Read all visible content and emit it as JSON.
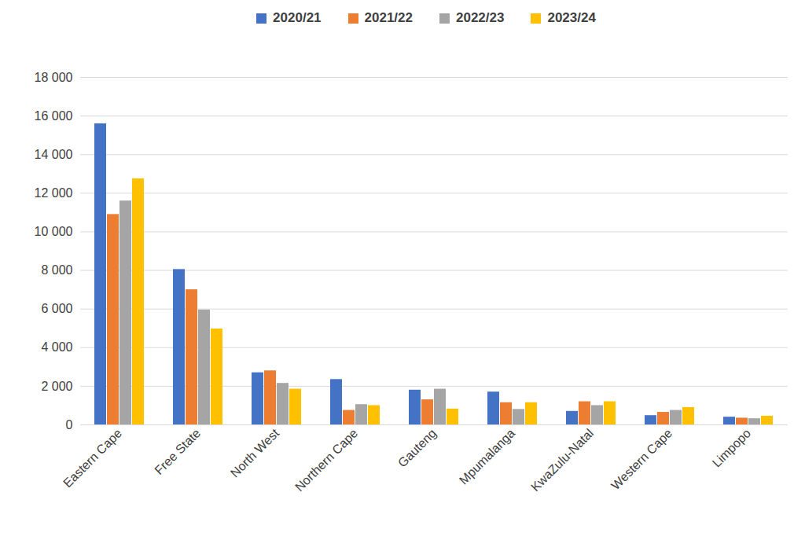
{
  "chart_data": {
    "type": "bar",
    "categories": [
      "Eastern Cape",
      "Free State",
      "North West",
      "Northern Cape",
      "Gauteng",
      "Mpumalanga",
      "KwaZulu-Natal",
      "Western Cape",
      "Limpopo"
    ],
    "series": [
      {
        "name": "2020/21",
        "color": "#4472c4",
        "values": [
          15600,
          8050,
          2700,
          2350,
          1800,
          1700,
          700,
          480,
          400
        ]
      },
      {
        "name": "2021/22",
        "color": "#ed7d31",
        "values": [
          10900,
          7000,
          2800,
          750,
          1300,
          1150,
          1200,
          650,
          350
        ]
      },
      {
        "name": "2022/23",
        "color": "#a5a5a5",
        "values": [
          11600,
          5950,
          2150,
          1050,
          1850,
          800,
          1000,
          750,
          320
        ]
      },
      {
        "name": "2023/24",
        "color": "#ffc000",
        "values": [
          12750,
          4970,
          1850,
          1000,
          820,
          1150,
          1200,
          900,
          450
        ]
      }
    ],
    "ylim": [
      0,
      18000
    ],
    "yticks": [
      0,
      {
        "value": 2000,
        "label": "2 000"
      },
      {
        "value": 4000,
        "label": "4 000"
      },
      {
        "value": 6000,
        "label": "6 000"
      },
      {
        "value": 8000,
        "label": "8 000"
      },
      {
        "value": 10000,
        "label": "10 000"
      },
      {
        "value": 12000,
        "label": "12 000"
      },
      {
        "value": 14000,
        "label": "14 000"
      },
      {
        "value": 16000,
        "label": "16 000"
      },
      {
        "value": 18000,
        "label": "18 000"
      }
    ],
    "grid": true,
    "legend": "top"
  }
}
